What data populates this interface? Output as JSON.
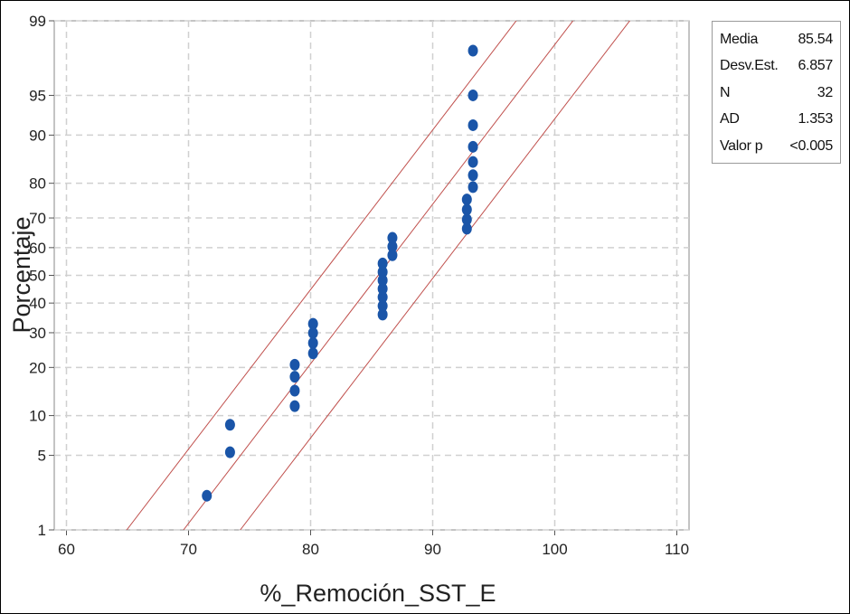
{
  "chart_data": {
    "type": "scatter",
    "subtype": "normal-probability-plot",
    "title": "",
    "xlabel": "%_Remoción_SST_E",
    "ylabel": "Porcentaje",
    "xlim": [
      59,
      111
    ],
    "ylim": [
      1,
      99
    ],
    "y_scale": "normal-probability",
    "x_ticks": [
      60,
      70,
      80,
      90,
      100,
      110
    ],
    "y_ticks": [
      1,
      5,
      10,
      20,
      30,
      40,
      50,
      60,
      70,
      80,
      90,
      95,
      99
    ],
    "grid": true,
    "legend": "none",
    "colors": {
      "points": "#1a55a8",
      "fit_lines": "#c0504d",
      "grid": "#d0d0d0"
    },
    "points": [
      {
        "x": 71.5,
        "y": 2.2
      },
      {
        "x": 73.4,
        "y": 5.3
      },
      {
        "x": 73.4,
        "y": 8.6
      },
      {
        "x": 78.7,
        "y": 11.6
      },
      {
        "x": 78.7,
        "y": 14.6
      },
      {
        "x": 78.7,
        "y": 17.7
      },
      {
        "x": 78.7,
        "y": 20.7
      },
      {
        "x": 80.2,
        "y": 23.8
      },
      {
        "x": 80.2,
        "y": 26.8
      },
      {
        "x": 80.2,
        "y": 29.9
      },
      {
        "x": 80.2,
        "y": 32.9
      },
      {
        "x": 85.9,
        "y": 36.0
      },
      {
        "x": 85.9,
        "y": 39.0
      },
      {
        "x": 85.9,
        "y": 42.1
      },
      {
        "x": 85.9,
        "y": 45.1
      },
      {
        "x": 85.9,
        "y": 48.2
      },
      {
        "x": 85.9,
        "y": 51.2
      },
      {
        "x": 85.9,
        "y": 54.3
      },
      {
        "x": 86.7,
        "y": 57.3
      },
      {
        "x": 86.7,
        "y": 60.4
      },
      {
        "x": 86.7,
        "y": 63.4
      },
      {
        "x": 92.8,
        "y": 66.5
      },
      {
        "x": 92.8,
        "y": 69.5
      },
      {
        "x": 92.8,
        "y": 72.6
      },
      {
        "x": 92.8,
        "y": 75.6
      },
      {
        "x": 93.3,
        "y": 79.0
      },
      {
        "x": 93.3,
        "y": 82.0
      },
      {
        "x": 93.3,
        "y": 85.0
      },
      {
        "x": 93.3,
        "y": 88.0
      },
      {
        "x": 93.3,
        "y": 91.5
      },
      {
        "x": 93.3,
        "y": 95.0
      },
      {
        "x": 93.3,
        "y": 98.0
      }
    ],
    "fit": {
      "mean": 85.54,
      "stdev": 6.857,
      "band_halfwidth_x": 4.65
    }
  },
  "stats": [
    {
      "label": "Media",
      "value": "85.54"
    },
    {
      "label": "Desv.Est.",
      "value": "6.857"
    },
    {
      "label": "N",
      "value": "32"
    },
    {
      "label": "AD",
      "value": "1.353"
    },
    {
      "label": "Valor p",
      "value": "<0.005"
    }
  ]
}
